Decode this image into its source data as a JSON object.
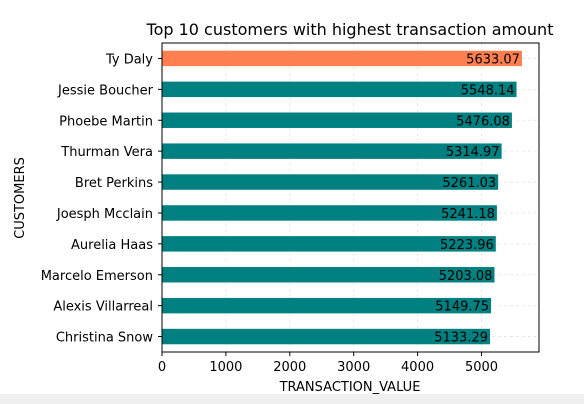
{
  "chart_data": {
    "type": "bar",
    "orientation": "horizontal",
    "title": "Top 10 customers with highest transaction amount",
    "xlabel": "TRANSACTION_VALUE",
    "ylabel": "CUSTOMERS",
    "xlim": [
      0,
      5900
    ],
    "xticks": [
      0,
      1000,
      2000,
      3000,
      4000,
      5000
    ],
    "xtick_labels": [
      "0",
      "1000",
      "2000",
      "3000",
      "4000",
      "5000"
    ],
    "grid": true,
    "categories": [
      "Ty Daly",
      "Jessie Boucher",
      "Phoebe Martin",
      "Thurman Vera",
      "Bret Perkins",
      "Joesph Mcclain",
      "Aurelia Haas",
      "Marcelo Emerson",
      "Alexis Villarreal",
      "Christina Snow"
    ],
    "values": [
      5633.07,
      5548.14,
      5476.08,
      5314.97,
      5261.03,
      5241.18,
      5223.96,
      5203.08,
      5149.75,
      5133.29
    ],
    "value_labels": [
      "5633.07",
      "5548.14",
      "5476.08",
      "5314.97",
      "5261.03",
      "5241.18",
      "5223.96",
      "5203.08",
      "5149.75",
      "5133.29"
    ],
    "bar_colors": [
      "#ff7f50",
      "#008080",
      "#008080",
      "#008080",
      "#008080",
      "#008080",
      "#008080",
      "#008080",
      "#008080",
      "#008080"
    ],
    "highlight_color": "#ff7f50",
    "default_color": "#008080"
  }
}
